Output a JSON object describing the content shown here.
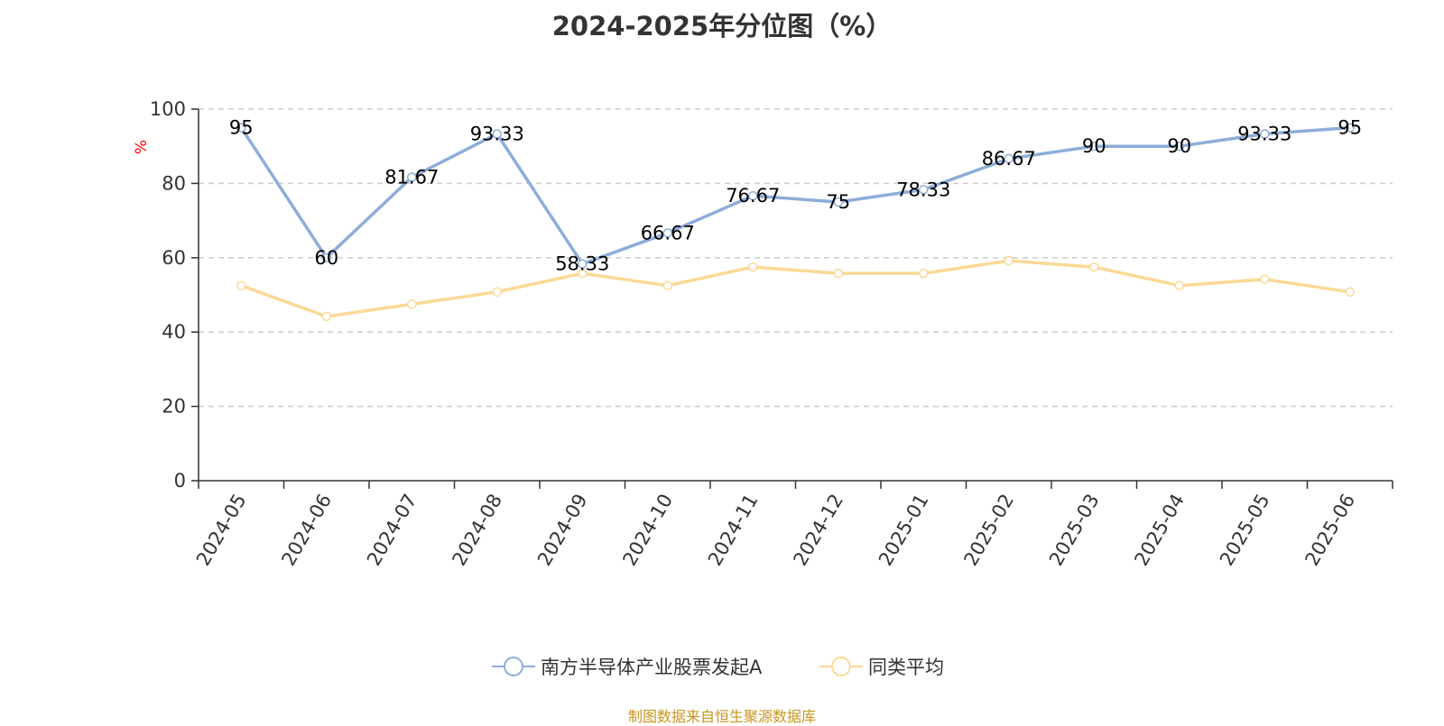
{
  "chart_data": {
    "type": "line",
    "title": "2024-2025年分位图（%）",
    "ylabel": "%",
    "ylim": [
      0,
      100
    ],
    "yticks": [
      0,
      20,
      40,
      60,
      80,
      100
    ],
    "grid": true,
    "legend_position": "bottom",
    "categories": [
      "2024-05",
      "2024-06",
      "2024-07",
      "2024-08",
      "2024-09",
      "2024-10",
      "2024-11",
      "2024-12",
      "2025-01",
      "2025-02",
      "2025-03",
      "2025-04",
      "2025-05",
      "2025-06"
    ],
    "series": [
      {
        "name": "南方半导体产业股票发起A",
        "color": "#8eadd9",
        "values": [
          95,
          60,
          81.67,
          93.33,
          58.33,
          66.67,
          76.67,
          75,
          78.33,
          86.67,
          90,
          90,
          93.33,
          95
        ],
        "data_labels": [
          "95",
          "60",
          "81.67",
          "93.33",
          "58.33",
          "66.67",
          "76.67",
          "75",
          "78.33",
          "86.67",
          "90",
          "90",
          "93.33",
          "95"
        ]
      },
      {
        "name": "同类平均",
        "color": "#fbd995",
        "values": [
          52.5,
          44.2,
          47.5,
          50.8,
          55.8,
          52.5,
          57.5,
          55.8,
          55.8,
          59.2,
          57.5,
          52.5,
          54.2,
          50.8
        ]
      }
    ]
  },
  "source_note": "制图数据来自恒生聚源数据库",
  "colors": {
    "axis": "#333333",
    "grid": "#cccccc",
    "ylabel": "#ff0000",
    "source": "#c8961e"
  }
}
